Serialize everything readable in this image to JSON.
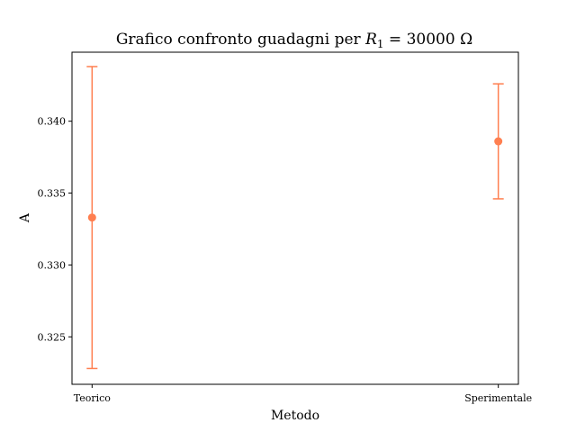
{
  "chart_data": {
    "type": "scatter",
    "title_prefix": "Grafico confronto guadagni per ",
    "title_var": "R",
    "title_sub": "1",
    "title_suffix": " = 30000 Ω",
    "xlabel": "Metodo",
    "ylabel": "A",
    "categories": [
      "Teorico",
      "Sperimentale"
    ],
    "values": [
      0.3333,
      0.3386
    ],
    "errors": [
      0.0105,
      0.004
    ],
    "ylim": [
      0.3217,
      0.3448
    ],
    "yticks": [
      0.325,
      0.33,
      0.335,
      0.34
    ],
    "ytick_labels": [
      "0.325",
      "0.330",
      "0.335",
      "0.340"
    ],
    "grid": false,
    "color": "#ff7f50"
  }
}
